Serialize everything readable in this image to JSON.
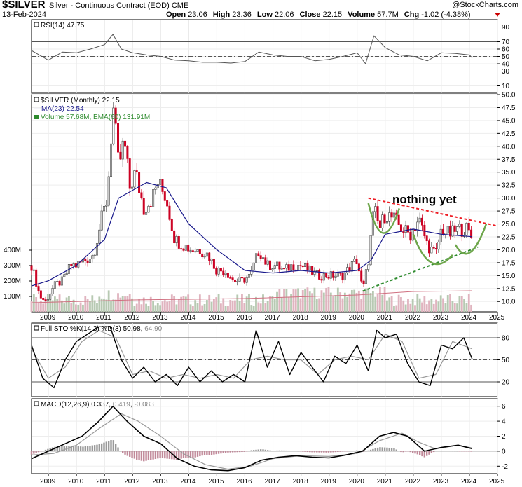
{
  "header": {
    "symbol": "$SILVER",
    "description": "Silver - Continuous Contract (EOD)",
    "exchange": "CME",
    "date": "13-Feb-2024",
    "watermark": "@StockCharts.com",
    "open_label": "Open",
    "open": "23.06",
    "high_label": "High",
    "high": "23.36",
    "low_label": "Low",
    "low": "22.06",
    "close_label": "Close",
    "close": "22.15",
    "volume_label": "Volume",
    "volume": "57.7M",
    "chg_label": "Chg",
    "chg": "-1.02 (-4.38%)",
    "down_color": "#cc0000"
  },
  "panels": {
    "rsi": {
      "label": "RSI(14)",
      "value": "47.75"
    },
    "price": {
      "label": "$SILVER (Monthly)",
      "value": "22.15"
    },
    "ma": {
      "label": "MA(23)",
      "value": "22.54",
      "color": "#1a1a8c"
    },
    "volume": {
      "label": "Volume 57.68M, EMA(60)",
      "value": "131.91M",
      "color": "#2e8b2e"
    },
    "sto": {
      "label": "Full STO %K(14,3) %D(3)",
      "k": "50.98",
      "d": "64.90"
    },
    "macd": {
      "label": "MACD(12,26,9)",
      "macd": "0.337",
      "signal": "0.419",
      "hist": "-0.083"
    }
  },
  "annotation": {
    "text": "nothing yet"
  },
  "colors": {
    "up": "#3a3a3a",
    "down": "#cc0022",
    "volume_up": "#b7c9b2",
    "volume_down": "#e0b4bf",
    "resistance": "#ee1c24",
    "support": "#2e8b2e",
    "cup": "#6ea64b"
  },
  "chart_data": [
    {
      "type": "line",
      "title": "RSI(14) 47.75",
      "y_ticks": [
        "90",
        "70",
        "60",
        "50",
        "40",
        "30",
        "10"
      ],
      "ylim": [
        0,
        100
      ],
      "reference_lines": [
        70,
        50,
        30
      ],
      "series": [
        {
          "name": "RSI(14)",
          "x": [
            2008.4,
            2009.0,
            2009.5,
            2010.0,
            2010.5,
            2011.0,
            2011.3,
            2011.6,
            2012.0,
            2012.5,
            2013.0,
            2013.5,
            2014.0,
            2014.5,
            2015.0,
            2015.5,
            2016.0,
            2016.5,
            2017.0,
            2017.5,
            2018.0,
            2018.5,
            2019.0,
            2019.5,
            2020.0,
            2020.3,
            2020.6,
            2021.0,
            2021.5,
            2022.0,
            2022.5,
            2023.0,
            2023.5,
            2024.0,
            2024.1
          ],
          "values": [
            58,
            45,
            56,
            55,
            60,
            66,
            80,
            60,
            55,
            52,
            50,
            45,
            44,
            42,
            42,
            41,
            43,
            56,
            52,
            50,
            50,
            44,
            46,
            50,
            55,
            40,
            78,
            62,
            52,
            50,
            44,
            55,
            54,
            52,
            48
          ]
        }
      ]
    },
    {
      "type": "line",
      "title": "$SILVER (Monthly) 22.15",
      "xlim": [
        2008.4,
        2025.0
      ],
      "x_ticks": [
        "2009",
        "2010",
        "2011",
        "2012",
        "2013",
        "2014",
        "2015",
        "2016",
        "2017",
        "2018",
        "2019",
        "2020",
        "2021",
        "2022",
        "2023",
        "2024",
        "2025"
      ],
      "y_ticks": [
        "50.0",
        "47.5",
        "45.0",
        "42.5",
        "40.0",
        "37.5",
        "35.0",
        "32.5",
        "30.0",
        "27.5",
        "25.0",
        "22.5",
        "20.0",
        "17.5",
        "15.0",
        "12.5",
        "10.0"
      ],
      "ylim": [
        8,
        50
      ],
      "volume_ticks": [
        "400M",
        "300M",
        "200M",
        "100M"
      ],
      "series": [
        {
          "name": "$SILVER (Monthly)",
          "x": [
            2008.4,
            2008.7,
            2008.9,
            2009.2,
            2009.5,
            2009.8,
            2010.0,
            2010.3,
            2010.6,
            2010.9,
            2011.1,
            2011.3,
            2011.5,
            2011.7,
            2011.9,
            2012.1,
            2012.4,
            2012.7,
            2012.9,
            2013.2,
            2013.5,
            2013.8,
            2014.1,
            2014.4,
            2014.7,
            2015.0,
            2015.3,
            2015.6,
            2015.9,
            2016.2,
            2016.5,
            2016.8,
            2017.1,
            2017.4,
            2017.7,
            2018.0,
            2018.3,
            2018.6,
            2018.9,
            2019.2,
            2019.5,
            2019.8,
            2020.0,
            2020.2,
            2020.4,
            2020.6,
            2020.8,
            2021.0,
            2021.3,
            2021.6,
            2021.9,
            2022.2,
            2022.5,
            2022.8,
            2023.0,
            2023.3,
            2023.6,
            2023.9,
            2024.1
          ],
          "values": [
            17,
            11,
            10,
            13,
            14,
            17,
            17,
            18,
            19,
            26,
            30,
            48,
            36,
            41,
            32,
            35,
            28,
            30,
            33,
            30,
            22,
            21,
            20,
            20,
            19,
            16,
            16,
            14,
            14,
            15,
            20,
            17,
            17,
            16,
            17,
            17,
            16,
            15,
            15,
            15,
            15,
            17,
            18,
            12,
            18,
            28,
            24,
            27,
            26,
            24,
            23,
            26,
            21,
            19,
            24,
            23,
            24,
            24,
            22.15
          ]
        },
        {
          "name": "MA(23)",
          "x": [
            2008.4,
            2009.0,
            2010.0,
            2011.0,
            2011.5,
            2012.5,
            2013.2,
            2014.0,
            2015.0,
            2016.0,
            2017.0,
            2018.0,
            2019.0,
            2020.0,
            2020.5,
            2021.0,
            2022.0,
            2023.0,
            2024.1
          ],
          "values": [
            13,
            14,
            17,
            22,
            30,
            33,
            32,
            25,
            20,
            16,
            15.5,
            16,
            15.5,
            16,
            18,
            23,
            24,
            23,
            22.54
          ]
        }
      ],
      "volume": {
        "name": "Volume",
        "value": "57.68M",
        "ema_name": "EMA(60)",
        "ema_value": "131.91M"
      }
    },
    {
      "type": "line",
      "title": "Full STO %K(14,3) %D(3) 50.98, 64.90",
      "y_ticks": [
        "80",
        "50",
        "20"
      ],
      "ylim": [
        0,
        100
      ],
      "series": [
        {
          "name": "%K",
          "x": [
            2008.4,
            2008.8,
            2009.2,
            2009.6,
            2010.0,
            2010.4,
            2010.8,
            2011.2,
            2011.6,
            2012.0,
            2012.4,
            2012.8,
            2013.2,
            2013.6,
            2014.0,
            2014.4,
            2014.8,
            2015.2,
            2015.6,
            2016.0,
            2016.4,
            2016.8,
            2017.2,
            2017.6,
            2018.0,
            2018.4,
            2018.8,
            2019.2,
            2019.6,
            2020.0,
            2020.4,
            2020.7,
            2021.0,
            2021.4,
            2021.8,
            2022.2,
            2022.6,
            2023.0,
            2023.4,
            2023.8,
            2024.1
          ],
          "values": [
            70,
            25,
            12,
            50,
            75,
            85,
            95,
            95,
            50,
            25,
            40,
            20,
            30,
            15,
            40,
            20,
            35,
            20,
            30,
            20,
            90,
            40,
            75,
            30,
            60,
            40,
            20,
            55,
            45,
            70,
            35,
            90,
            80,
            85,
            45,
            20,
            15,
            70,
            65,
            80,
            51
          ]
        },
        {
          "name": "%D",
          "x": [
            2008.4,
            2009.0,
            2009.6,
            2010.2,
            2010.8,
            2011.4,
            2012.0,
            2012.6,
            2013.2,
            2013.8,
            2014.4,
            2015.0,
            2015.6,
            2016.2,
            2016.8,
            2017.4,
            2018.0,
            2018.6,
            2019.2,
            2019.8,
            2020.4,
            2021.0,
            2021.6,
            2022.2,
            2022.8,
            2023.4,
            2024.1
          ],
          "values": [
            65,
            25,
            40,
            75,
            90,
            80,
            30,
            35,
            25,
            30,
            25,
            30,
            25,
            50,
            55,
            50,
            50,
            30,
            50,
            55,
            50,
            85,
            75,
            25,
            30,
            75,
            65
          ]
        }
      ]
    },
    {
      "type": "line",
      "title": "MACD(12,26,9) 0.337, 0.419, -0.083",
      "y_ticks": [
        "6",
        "4",
        "2",
        "0",
        "-2"
      ],
      "ylim": [
        -3,
        7
      ],
      "series": [
        {
          "name": "MACD",
          "x": [
            2008.4,
            2009.0,
            2009.6,
            2010.2,
            2010.8,
            2011.3,
            2011.8,
            2012.4,
            2013.0,
            2013.6,
            2014.2,
            2014.8,
            2015.4,
            2016.0,
            2016.6,
            2017.2,
            2017.8,
            2018.4,
            2019.0,
            2019.6,
            2020.2,
            2020.8,
            2021.3,
            2021.8,
            2022.4,
            2023.0,
            2023.6,
            2024.1
          ],
          "values": [
            -1,
            0,
            1,
            2,
            4,
            6,
            4,
            2,
            1,
            -1,
            -2,
            -2.5,
            -2.6,
            -2.2,
            -1.2,
            -0.8,
            -0.6,
            -0.8,
            -0.9,
            -0.5,
            0,
            2,
            2.5,
            2.0,
            0,
            0.5,
            0.8,
            0.337
          ]
        },
        {
          "name": "Signal",
          "x": [
            2008.4,
            2009.2,
            2010.0,
            2010.8,
            2011.6,
            2012.2,
            2013.0,
            2013.8,
            2014.6,
            2015.4,
            2016.2,
            2017.0,
            2018.0,
            2019.0,
            2020.0,
            2020.8,
            2021.6,
            2022.2,
            2022.8,
            2023.6,
            2024.1
          ],
          "values": [
            -0.5,
            -0.3,
            0.8,
            3.0,
            5.0,
            4.0,
            2.0,
            -0.3,
            -1.8,
            -2.4,
            -2.0,
            -1.0,
            -0.6,
            -0.7,
            -0.3,
            1.4,
            2.4,
            1.2,
            0.3,
            0.8,
            0.419
          ]
        }
      ]
    }
  ]
}
